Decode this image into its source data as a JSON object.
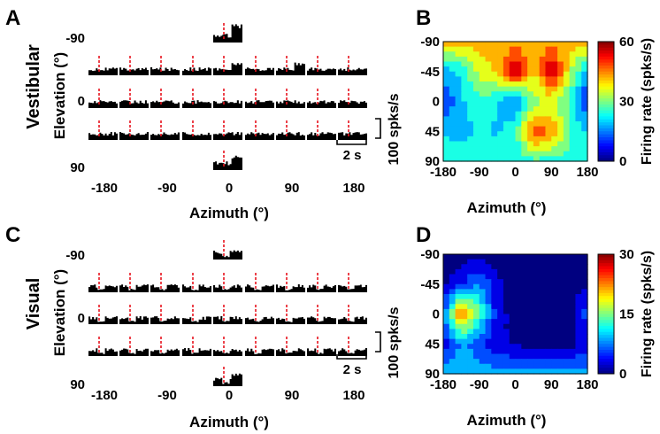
{
  "panels": [
    {
      "letter": "A",
      "row_label": "Vestibular",
      "ylabel": "Elevation (°)",
      "xlabel": "Azimuth (°)",
      "elevation_ticks": [
        "-90",
        "0",
        "90"
      ],
      "azimuth_ticks": [
        "-180",
        "-90",
        "0",
        "90",
        "180"
      ],
      "rate_scale_label": "100 spks/s",
      "time_scale_label": "2 s",
      "pattern": "vestibular"
    },
    {
      "letter": "C",
      "row_label": "Visual",
      "ylabel": "Elevation (°)",
      "xlabel": "Azimuth (°)",
      "elevation_ticks": [
        "-90",
        "0",
        "90"
      ],
      "azimuth_ticks": [
        "-180",
        "-90",
        "0",
        "90",
        "180"
      ],
      "rate_scale_label": "100 spks/s",
      "time_scale_label": "2 s",
      "pattern": "visual"
    }
  ],
  "chart_data": [
    {
      "type": "heatmap",
      "panel": "B",
      "xlabel": "Azimuth (°)",
      "ylabel": "",
      "x_ticks": [
        "-180",
        "-90",
        "0",
        "90",
        "180"
      ],
      "y_ticks": [
        "-90",
        "-45",
        "0",
        "45",
        "90"
      ],
      "x_values": [
        -180,
        -135,
        -90,
        -45,
        0,
        45,
        90,
        135,
        180
      ],
      "y_values": [
        -90,
        -45,
        0,
        45,
        90
      ],
      "colorbar": {
        "label": "Firing rate (spks/s)",
        "min": 0,
        "max": 60,
        "ticks": [
          "0",
          "30",
          "60"
        ]
      },
      "z": [
        [
          42,
          42,
          42,
          42,
          42,
          42,
          42,
          42,
          42
        ],
        [
          18,
          22,
          35,
          40,
          58,
          38,
          58,
          35,
          18
        ],
        [
          8,
          20,
          25,
          22,
          14,
          30,
          35,
          25,
          8
        ],
        [
          20,
          18,
          22,
          20,
          24,
          50,
          44,
          28,
          20
        ],
        [
          25,
          25,
          25,
          25,
          25,
          25,
          25,
          25,
          25
        ]
      ]
    },
    {
      "type": "heatmap",
      "panel": "D",
      "xlabel": "Azimuth (°)",
      "ylabel": "",
      "x_ticks": [
        "-180",
        "-90",
        "0",
        "90",
        "180"
      ],
      "y_ticks": [
        "-90",
        "-45",
        "0",
        "45",
        "90"
      ],
      "x_values": [
        -180,
        -135,
        -90,
        -45,
        0,
        45,
        90,
        135,
        180
      ],
      "y_values": [
        -90,
        -45,
        0,
        45,
        90
      ],
      "colorbar": {
        "label": "Firing rate (spks/s)",
        "min": 0,
        "max": 30,
        "ticks": [
          "0",
          "15",
          "30"
        ]
      },
      "z": [
        [
          0,
          0,
          0,
          0,
          0,
          0,
          0,
          0,
          0
        ],
        [
          1,
          4,
          8,
          2,
          0,
          0,
          0,
          0,
          1
        ],
        [
          6,
          24,
          14,
          3,
          0,
          0,
          0,
          0,
          6
        ],
        [
          3,
          8,
          6,
          2,
          1,
          0,
          0,
          0,
          3
        ],
        [
          9,
          9,
          9,
          9,
          9,
          9,
          9,
          9,
          9
        ]
      ]
    }
  ],
  "panel_letters": {
    "b": "B",
    "d": "D"
  }
}
